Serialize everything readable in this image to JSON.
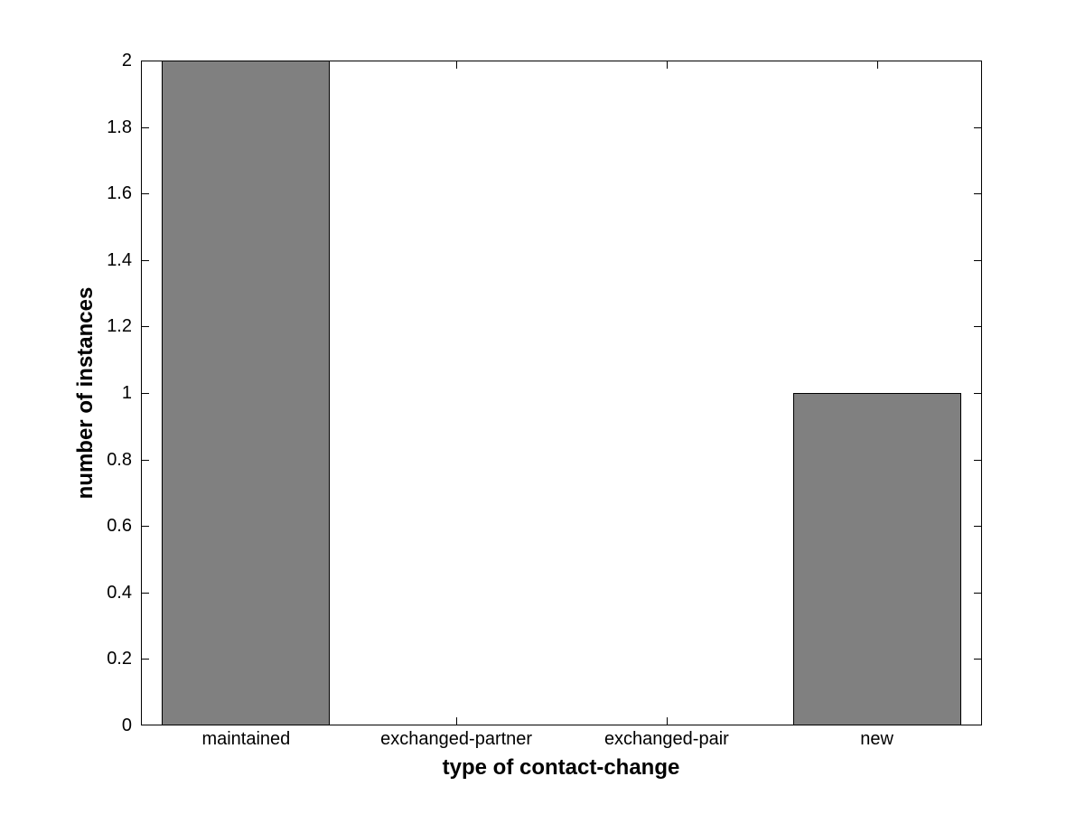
{
  "chart_data": {
    "type": "bar",
    "title": "",
    "xlabel": "type of contact-change",
    "ylabel": "number of instances",
    "categories": [
      "maintained",
      "exchanged-partner",
      "exchanged-pair",
      "new"
    ],
    "values": [
      2,
      0,
      0,
      1
    ],
    "ylim": [
      0,
      2
    ],
    "ytick_step": 0.2,
    "ytick_labels": [
      "0",
      "0.2",
      "0.4",
      "0.6",
      "0.8",
      "1",
      "1.2",
      "1.4",
      "1.6",
      "1.8",
      "2"
    ],
    "bar_rel_width": 0.8,
    "bar_color": "#808080",
    "bar_edge_color": "#000000",
    "axis_color": "#000000",
    "background_color": "#ffffff",
    "grid": "off",
    "legend": "none",
    "ticks_mirrored": true,
    "tick_direction": "in"
  }
}
